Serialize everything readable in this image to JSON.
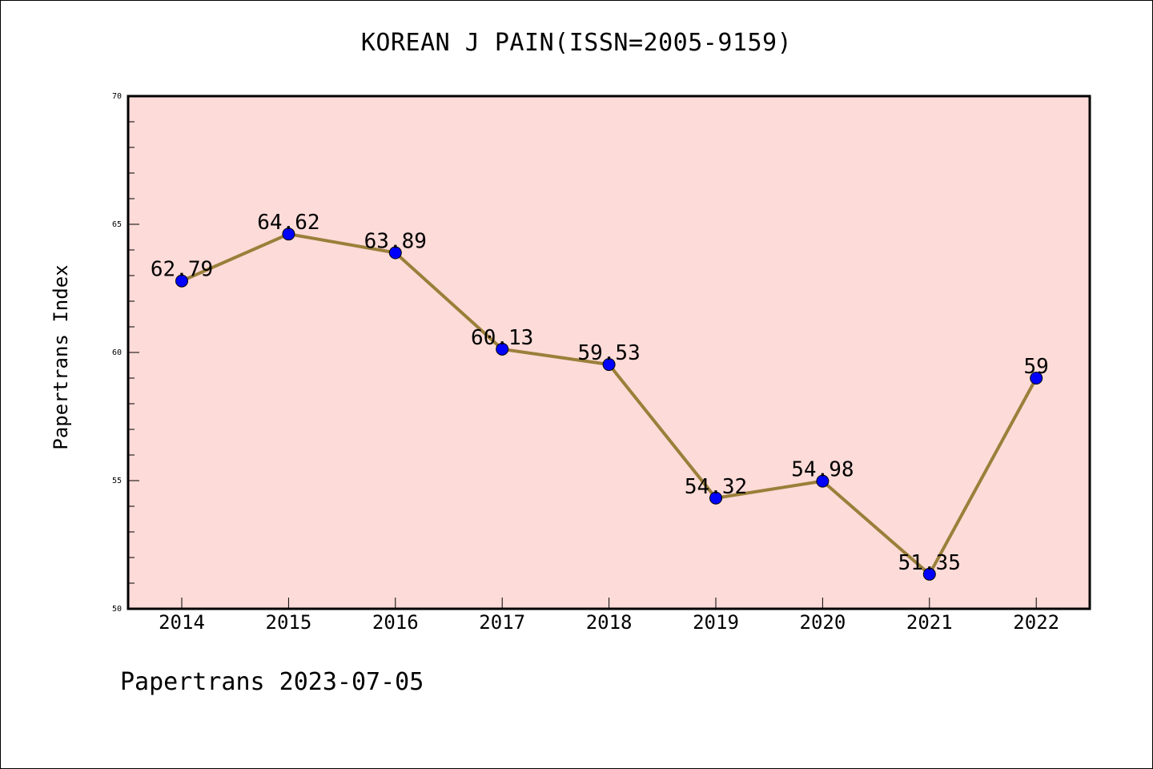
{
  "chart_data": {
    "type": "line",
    "title": "KOREAN J PAIN(ISSN=2005-9159)",
    "xlabel": "",
    "ylabel": "Papertrans Index",
    "categories": [
      "2014",
      "2015",
      "2016",
      "2017",
      "2018",
      "2019",
      "2020",
      "2021",
      "2022"
    ],
    "values": [
      62.79,
      64.62,
      63.89,
      60.13,
      59.53,
      54.32,
      54.98,
      51.35,
      59
    ],
    "data_labels": [
      "62.79",
      "64.62",
      "63.89",
      "60.13",
      "59.53",
      "54.32",
      "54.98",
      "51.35",
      "59"
    ],
    "ylim": [
      50,
      70
    ],
    "yticks": [
      "50",
      "55",
      "60",
      "65",
      "70"
    ],
    "grid": false,
    "colors": {
      "plot_background": "#fddbd8",
      "line": "#9a7f3a",
      "marker": "#0000ff"
    }
  },
  "footer": {
    "text": "Papertrans 2023-07-05"
  }
}
